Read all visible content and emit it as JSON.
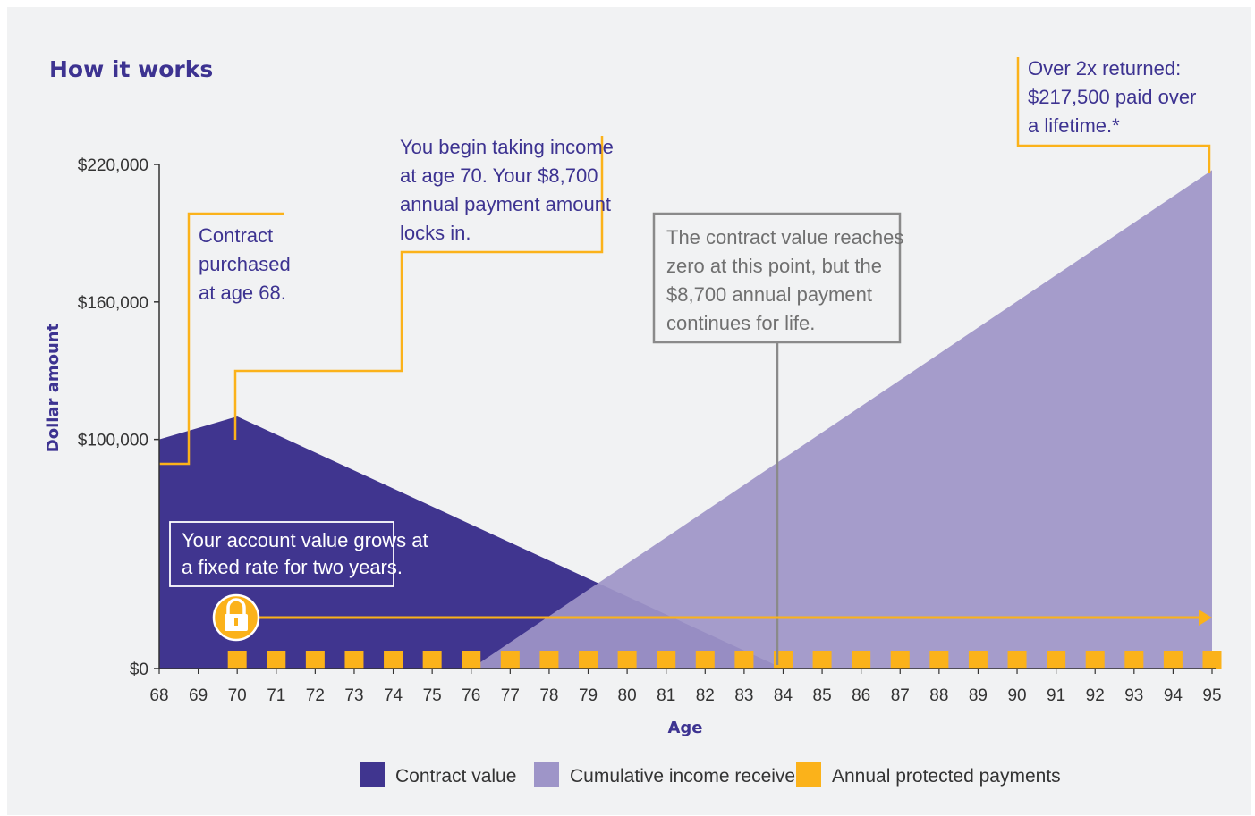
{
  "chart_data": {
    "type": "area",
    "title": "How it works",
    "xlabel": "Age",
    "ylabel": "Dollar amount",
    "x_ticks": [
      68,
      69,
      70,
      71,
      72,
      73,
      74,
      75,
      76,
      77,
      78,
      79,
      80,
      81,
      82,
      83,
      84,
      85,
      86,
      87,
      88,
      89,
      90,
      91,
      92,
      93,
      94,
      95
    ],
    "xlim": [
      68,
      95
    ],
    "ylim": [
      0,
      220000
    ],
    "y_ticks": [
      0,
      100000,
      160000,
      220000
    ],
    "y_tick_labels": [
      "$0",
      "$100,000",
      "$160,000",
      "$220,000"
    ],
    "series": [
      {
        "name": "Contract value",
        "color": "#40358f",
        "points": [
          [
            68,
            100000
          ],
          [
            70,
            110000
          ],
          [
            84,
            0
          ]
        ]
      },
      {
        "name": "Cumulative income received",
        "color": "#9e95c8",
        "points": [
          [
            76,
            0
          ],
          [
            95,
            217500
          ]
        ]
      },
      {
        "name": "Annual protected payments",
        "color": "#fbb21a",
        "ages": [
          70,
          71,
          72,
          73,
          74,
          75,
          76,
          77,
          78,
          79,
          80,
          81,
          82,
          83,
          84,
          85,
          86,
          87,
          88,
          89,
          90,
          91,
          92,
          93,
          94,
          95
        ],
        "value": 8700
      }
    ],
    "annotations": [
      {
        "id": "purchase",
        "lines": [
          "Contract",
          "purchased",
          "at age 68."
        ]
      },
      {
        "id": "income",
        "lines": [
          "You begin taking income",
          "at age 70. Your $8,700",
          "annual payment amount",
          "locks in."
        ]
      },
      {
        "id": "zero",
        "lines": [
          "The contract value reaches",
          "zero at this point, but the",
          "$8,700 annual payment",
          "continues for life."
        ]
      },
      {
        "id": "returned",
        "lines": [
          "Over 2x returned:",
          "$217,500 paid over",
          "a lifetime.*"
        ]
      },
      {
        "id": "grows",
        "lines": [
          "Your account value grows at",
          "a fixed rate for two years."
        ]
      }
    ],
    "legend_position": "bottom-center",
    "grid": false
  },
  "colors": {
    "contract": "#40358f",
    "cumulative": "#9e95c8",
    "payments": "#fbb21a",
    "callout_gray": "#8a8a8a",
    "background": "#f1f2f3"
  },
  "icons": {
    "lock": "lock-icon",
    "arrow": "arrow-right-icon"
  }
}
